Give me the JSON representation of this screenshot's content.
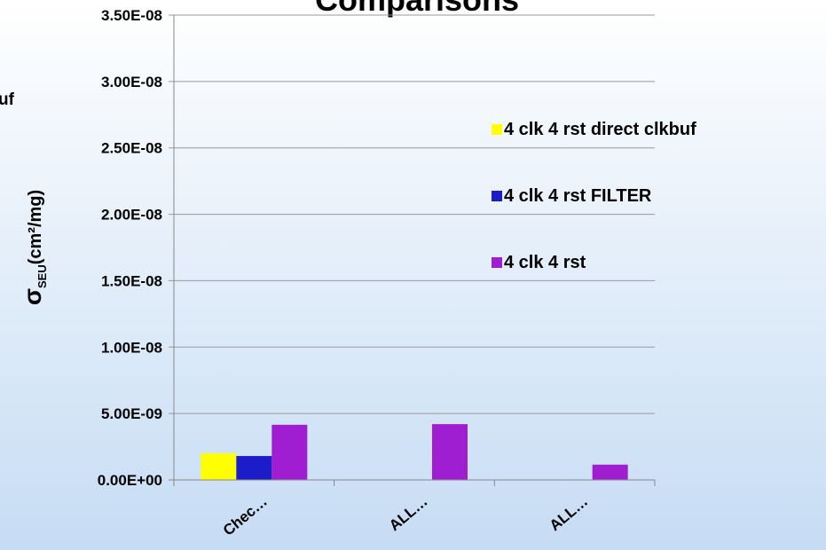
{
  "chart_data": {
    "type": "bar",
    "title": "Comparisons",
    "annotation": "uf",
    "ylabel": {
      "main": "σ",
      "sub": "SEU",
      "rest": "(cm²/mg)"
    },
    "categories": [
      "Chec…",
      "ALL…",
      "ALL…"
    ],
    "series": [
      {
        "name": "4 clk 4 rst direct clkbuf",
        "color": "#ffff00",
        "values": [
          2e-09,
          null,
          null
        ]
      },
      {
        "name": "4 clk 4 rst FILTER",
        "color": "#1c1cc8",
        "values": [
          1.8e-09,
          null,
          null
        ]
      },
      {
        "name": "4 clk 4 rst",
        "color": "#a01ed2",
        "values": [
          4.15e-09,
          4.2e-09,
          1.15e-09
        ]
      }
    ],
    "ylim": [
      0,
      3.5e-08
    ],
    "yticks": [
      {
        "value": 0,
        "label": "0.00E+00"
      },
      {
        "value": 5e-09,
        "label": "5.00E-09"
      },
      {
        "value": 1e-08,
        "label": "1.00E-08"
      },
      {
        "value": 1.5e-08,
        "label": "1.50E-08"
      },
      {
        "value": 2e-08,
        "label": "2.00E-08"
      },
      {
        "value": 2.5e-08,
        "label": "2.50E-08"
      },
      {
        "value": 3e-08,
        "label": "3.00E-08"
      },
      {
        "value": 3.5e-08,
        "label": "3.50E-08"
      }
    ],
    "grid": true,
    "legend": "right"
  }
}
